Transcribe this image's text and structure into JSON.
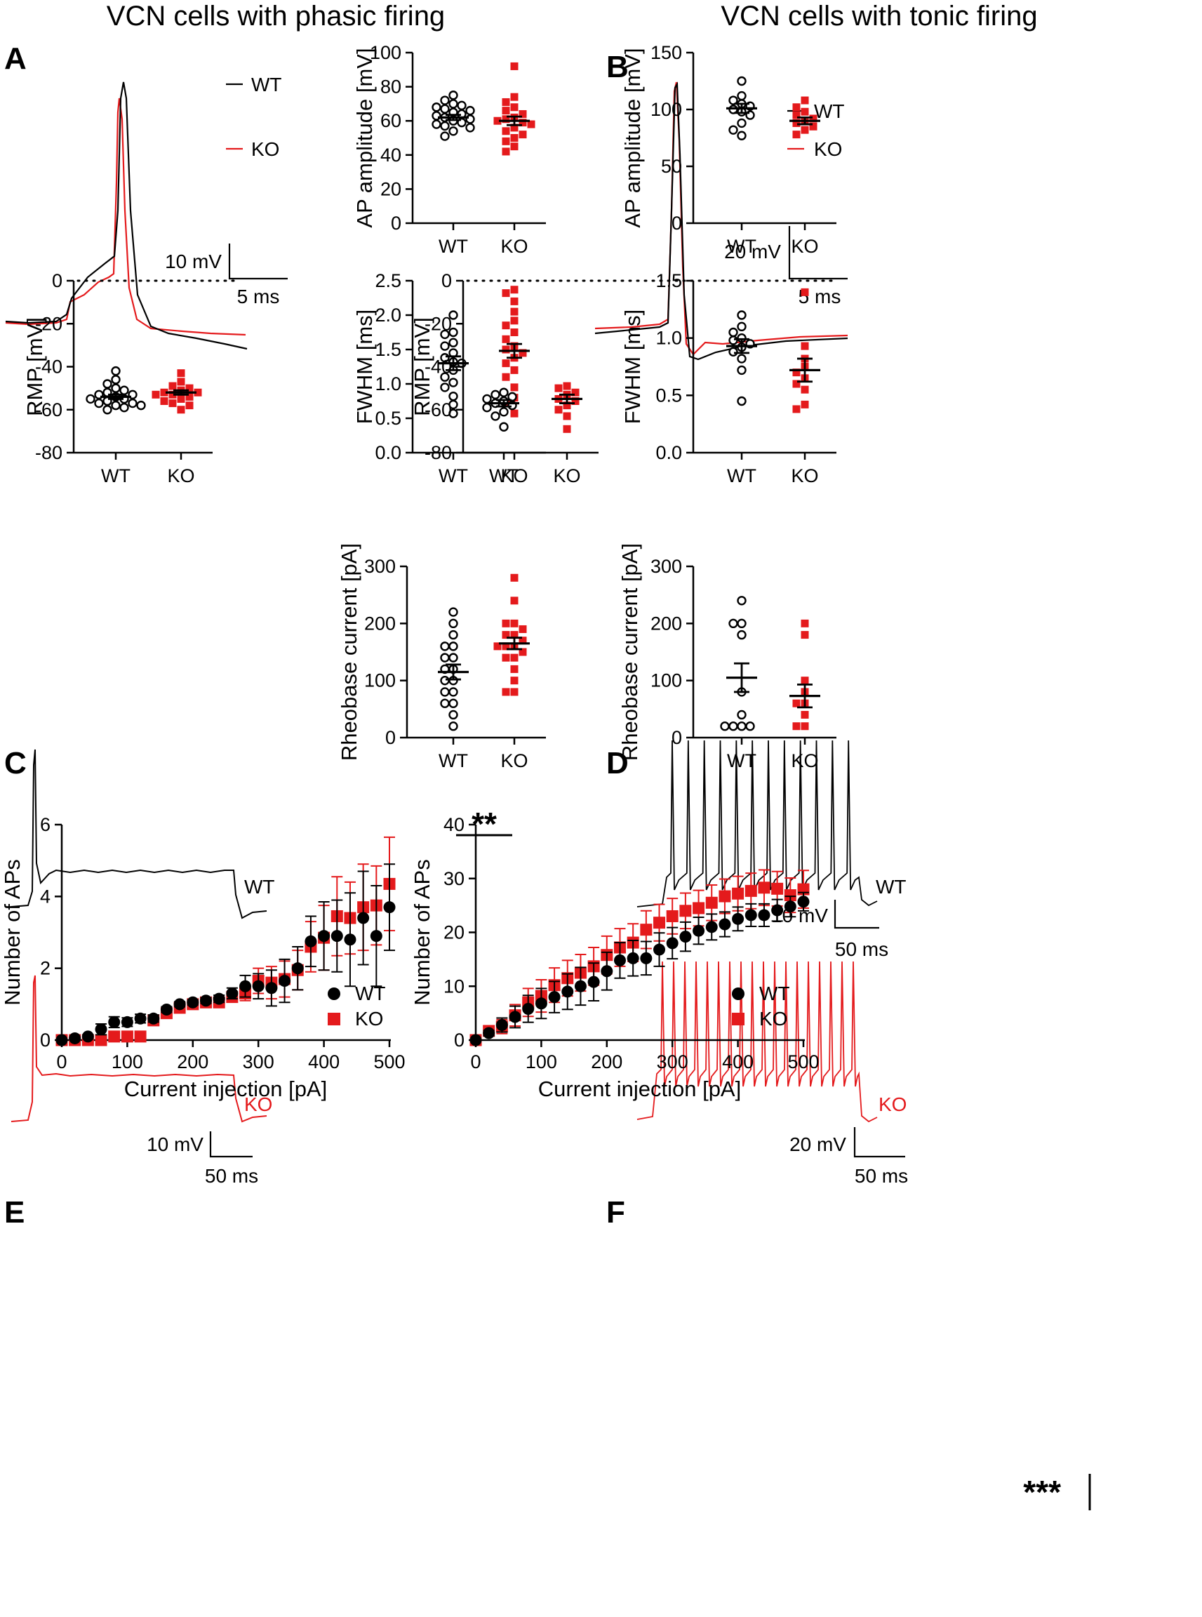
{
  "titles": {
    "left": "VCN cells with phasic firing",
    "right": "VCN cells with tonic firing"
  },
  "panel_letters": [
    "A",
    "B",
    "C",
    "D",
    "E",
    "F"
  ],
  "colors": {
    "wt": "#000000",
    "ko": "#e41a1c"
  },
  "legend": {
    "wt": "WT",
    "ko": "KO"
  },
  "scale_bars": {
    "a": {
      "v": "10 mV",
      "t": "5 ms"
    },
    "b": {
      "v": "20 mV",
      "t": "5 ms"
    },
    "c": {
      "v": "10 mV",
      "t": "50 ms"
    },
    "d_wt": {
      "v": "10 mV",
      "t": "50 ms"
    },
    "d_ko": {
      "v": "20 mV",
      "t": "50 ms"
    }
  },
  "significance": {
    "c": "**",
    "f": "***"
  },
  "chart_data": [
    {
      "id": "a_amp",
      "type": "scatter",
      "title": "",
      "xlabel": "",
      "ylabel": "AP amplitude [mV]",
      "categories": [
        "WT",
        "KO"
      ],
      "ylim": [
        0,
        100
      ],
      "yticks": [
        0,
        20,
        40,
        60,
        80,
        100
      ],
      "series": [
        {
          "name": "WT",
          "mean": 62,
          "sem": 1.5,
          "values": [
            75,
            72,
            70,
            69,
            68,
            67,
            66,
            65,
            64,
            63,
            62,
            61,
            60,
            59,
            58,
            57,
            56,
            54,
            51
          ]
        },
        {
          "name": "KO",
          "mean": 60,
          "sem": 2.5,
          "values": [
            92,
            74,
            71,
            68,
            66,
            64,
            62,
            61,
            60,
            59,
            58,
            56,
            54,
            52,
            50,
            48,
            45,
            42
          ]
        }
      ]
    },
    {
      "id": "a_rmp",
      "type": "scatter",
      "title": "",
      "xlabel": "",
      "ylabel": "RMP [mV]",
      "categories": [
        "WT",
        "KO"
      ],
      "ylim": [
        -80,
        0
      ],
      "yticks": [
        -80,
        -60,
        -40,
        -20,
        0
      ],
      "dotted_zero": true,
      "series": [
        {
          "name": "WT",
          "mean": -54,
          "sem": 1.0,
          "values": [
            -42,
            -46,
            -48,
            -50,
            -51,
            -52,
            -53,
            -53,
            -54,
            -55,
            -55,
            -56,
            -57,
            -58,
            -59,
            -60,
            -58,
            -57
          ]
        },
        {
          "name": "KO",
          "mean": -52,
          "sem": 1.0,
          "values": [
            -43,
            -47,
            -49,
            -50,
            -51,
            -52,
            -52,
            -53,
            -53,
            -54,
            -55,
            -56,
            -57,
            -58,
            -60
          ]
        }
      ]
    },
    {
      "id": "a_fwhm",
      "type": "scatter",
      "title": "",
      "xlabel": "",
      "ylabel": "FWHM [ms]",
      "categories": [
        "WT",
        "KO"
      ],
      "ylim": [
        0,
        2.5
      ],
      "yticks": [
        0.0,
        0.5,
        1.0,
        1.5,
        2.0,
        2.5
      ],
      "series": [
        {
          "name": "WT",
          "mean": 1.3,
          "sem": 0.1,
          "values": [
            2.0,
            1.75,
            1.72,
            1.6,
            1.55,
            1.45,
            1.38,
            1.32,
            1.3,
            1.2,
            1.1,
            1.02,
            0.95,
            0.82,
            0.7,
            0.57
          ]
        },
        {
          "name": "KO",
          "mean": 1.48,
          "sem": 0.1,
          "values": [
            2.37,
            2.32,
            2.2,
            2.05,
            1.92,
            1.85,
            1.75,
            1.65,
            1.55,
            1.5,
            1.45,
            1.38,
            1.3,
            1.2,
            1.1,
            0.95,
            0.8,
            0.72,
            0.57
          ]
        }
      ]
    },
    {
      "id": "b_amp",
      "type": "scatter",
      "title": "",
      "xlabel": "",
      "ylabel": "AP amplitude [mV]",
      "categories": [
        "WT",
        "KO"
      ],
      "ylim": [
        0,
        150
      ],
      "yticks": [
        0,
        50,
        100,
        150
      ],
      "series": [
        {
          "name": "WT",
          "mean": 101,
          "sem": 4,
          "values": [
            125,
            112,
            108,
            105,
            103,
            100,
            98,
            95,
            88,
            82,
            77
          ]
        },
        {
          "name": "KO",
          "mean": 90,
          "sem": 3,
          "values": [
            108,
            102,
            98,
            95,
            92,
            90,
            88,
            85,
            82,
            78
          ]
        }
      ]
    },
    {
      "id": "b_rmp",
      "type": "scatter",
      "title": "",
      "xlabel": "",
      "ylabel": "RMP [mV]",
      "categories": [
        "WT",
        "KO"
      ],
      "ylim": [
        -80,
        0
      ],
      "yticks": [
        -80,
        -60,
        -40,
        -20,
        0
      ],
      "dotted_zero": true,
      "series": [
        {
          "name": "WT",
          "mean": -57,
          "sem": 1.5,
          "values": [
            -52,
            -53,
            -54,
            -55,
            -56,
            -57,
            -58,
            -59,
            -61,
            -63,
            -68
          ]
        },
        {
          "name": "KO",
          "mean": -55,
          "sem": 2,
          "values": [
            -49,
            -50,
            -52,
            -53,
            -55,
            -56,
            -58,
            -60,
            -63,
            -69
          ]
        }
      ]
    },
    {
      "id": "b_fwhm",
      "type": "scatter",
      "title": "",
      "xlabel": "",
      "ylabel": "FWHM [ms]",
      "categories": [
        "WT",
        "KO"
      ],
      "ylim": [
        0,
        1.5
      ],
      "yticks": [
        0.0,
        0.5,
        1.0,
        1.5
      ],
      "series": [
        {
          "name": "WT",
          "mean": 0.93,
          "sem": 0.06,
          "values": [
            1.2,
            1.1,
            1.05,
            1.0,
            0.98,
            0.95,
            0.92,
            0.88,
            0.82,
            0.72,
            0.45
          ]
        },
        {
          "name": "KO",
          "mean": 0.72,
          "sem": 0.1,
          "values": [
            1.4,
            0.93,
            0.82,
            0.75,
            0.7,
            0.65,
            0.6,
            0.55,
            0.42,
            0.38
          ]
        }
      ]
    },
    {
      "id": "c_rheo",
      "type": "scatter",
      "title": "",
      "xlabel": "",
      "ylabel": "Rheobase current [pA]",
      "categories": [
        "WT",
        "KO"
      ],
      "ylim": [
        0,
        300
      ],
      "yticks": [
        0,
        100,
        200,
        300
      ],
      "series": [
        {
          "name": "WT",
          "mean": 115,
          "sem": 13,
          "values": [
            220,
            200,
            180,
            160,
            160,
            140,
            140,
            120,
            120,
            100,
            100,
            80,
            80,
            60,
            60,
            40,
            20
          ]
        },
        {
          "name": "KO",
          "mean": 165,
          "sem": 10,
          "values": [
            280,
            240,
            200,
            200,
            190,
            180,
            180,
            170,
            160,
            160,
            160,
            150,
            140,
            140,
            120,
            100,
            80,
            80
          ]
        }
      ]
    },
    {
      "id": "d_rheo",
      "type": "scatter",
      "title": "",
      "xlabel": "",
      "ylabel": "Rheobase current [pA]",
      "categories": [
        "WT",
        "KO"
      ],
      "ylim": [
        0,
        300
      ],
      "yticks": [
        0,
        100,
        200,
        300
      ],
      "series": [
        {
          "name": "WT",
          "mean": 105,
          "sem": 25,
          "values": [
            240,
            200,
            200,
            180,
            80,
            40,
            20,
            20,
            20,
            20
          ]
        },
        {
          "name": "KO",
          "mean": 73,
          "sem": 20,
          "values": [
            200,
            180,
            100,
            80,
            60,
            60,
            40,
            20,
            20
          ]
        }
      ]
    },
    {
      "id": "e_fi",
      "type": "scatter",
      "title": "",
      "xlabel": "Current injection [pA]",
      "ylabel": "Number of APs",
      "xlim": [
        0,
        500
      ],
      "ylim": [
        0,
        6
      ],
      "xticks": [
        0,
        100,
        200,
        300,
        400,
        500
      ],
      "yticks": [
        0,
        2,
        4,
        6
      ],
      "x": [
        0,
        20,
        40,
        60,
        80,
        100,
        120,
        140,
        160,
        180,
        200,
        220,
        240,
        260,
        280,
        300,
        320,
        340,
        360,
        380,
        400,
        420,
        440,
        460,
        480,
        500
      ],
      "series": [
        {
          "name": "WT",
          "y": [
            0,
            0.05,
            0.1,
            0.3,
            0.5,
            0.5,
            0.6,
            0.6,
            0.85,
            1.0,
            1.05,
            1.1,
            1.15,
            1.3,
            1.5,
            1.5,
            1.45,
            1.65,
            2.0,
            2.75,
            2.9,
            2.9,
            2.8,
            3.4,
            2.9,
            3.7
          ],
          "err": [
            0,
            0.03,
            0.05,
            0.15,
            0.15,
            0.12,
            0.12,
            0.1,
            0.08,
            0.07,
            0.07,
            0.08,
            0.1,
            0.15,
            0.3,
            0.35,
            0.5,
            0.6,
            0.6,
            0.7,
            0.95,
            1.0,
            1.3,
            1.3,
            1.4,
            1.2
          ]
        },
        {
          "name": "KO",
          "y": [
            0,
            0,
            0,
            0,
            0.1,
            0.1,
            0.1,
            0.55,
            0.75,
            0.9,
            1.0,
            1.05,
            1.05,
            1.2,
            1.3,
            1.65,
            1.6,
            1.7,
            1.95,
            2.6,
            2.85,
            3.45,
            3.4,
            3.7,
            3.75,
            4.35
          ],
          "err": [
            0,
            0,
            0,
            0,
            0.03,
            0.03,
            0.03,
            0.1,
            0.08,
            0.05,
            0.05,
            0.05,
            0.08,
            0.1,
            0.2,
            0.35,
            0.45,
            0.5,
            0.55,
            0.7,
            0.9,
            1.1,
            1.0,
            1.2,
            1.1,
            1.3
          ]
        }
      ]
    },
    {
      "id": "f_fi",
      "type": "scatter",
      "title": "",
      "xlabel": "Current injection [pA]",
      "ylabel": "Number of APs",
      "xlim": [
        0,
        500
      ],
      "ylim": [
        0,
        40
      ],
      "xticks": [
        0,
        100,
        200,
        300,
        400,
        500
      ],
      "yticks": [
        0,
        10,
        20,
        30,
        40
      ],
      "x": [
        0,
        20,
        40,
        60,
        80,
        100,
        120,
        140,
        160,
        180,
        200,
        220,
        240,
        260,
        280,
        300,
        320,
        340,
        360,
        380,
        400,
        420,
        440,
        460,
        480,
        500
      ],
      "series": [
        {
          "name": "WT",
          "y": [
            0,
            1.3,
            2.8,
            4.3,
            5.8,
            6.8,
            8.0,
            9.0,
            10.0,
            10.8,
            12.8,
            14.8,
            15.2,
            15.2,
            16.8,
            18.0,
            19.2,
            20.3,
            21.0,
            21.5,
            22.5,
            23.2,
            23.2,
            24.1,
            24.8,
            25.7
          ],
          "err": [
            0,
            0.5,
            1.3,
            2.0,
            2.5,
            2.8,
            2.9,
            3.3,
            3.5,
            3.5,
            3.5,
            3.3,
            3.3,
            3.1,
            3.1,
            2.9,
            2.7,
            2.5,
            2.4,
            2.3,
            2.2,
            2.1,
            2.1,
            2.0,
            1.9,
            1.7
          ]
        },
        {
          "name": "KO",
          "y": [
            0,
            1.7,
            2.5,
            4.6,
            7.0,
            8.2,
            10.2,
            11.5,
            12.5,
            13.7,
            15.8,
            17.2,
            18.1,
            20.5,
            21.8,
            23.0,
            24.0,
            24.5,
            25.5,
            26.7,
            27.2,
            27.7,
            28.3,
            28.1,
            26.9,
            28.0
          ],
          "err": [
            0,
            0.5,
            1.3,
            2.0,
            2.6,
            3.0,
            3.2,
            3.3,
            3.4,
            3.5,
            3.5,
            3.5,
            3.5,
            3.5,
            3.4,
            3.3,
            3.3,
            3.3,
            3.3,
            3.2,
            3.2,
            3.3,
            3.3,
            3.2,
            3.2,
            3.5
          ]
        }
      ]
    }
  ]
}
